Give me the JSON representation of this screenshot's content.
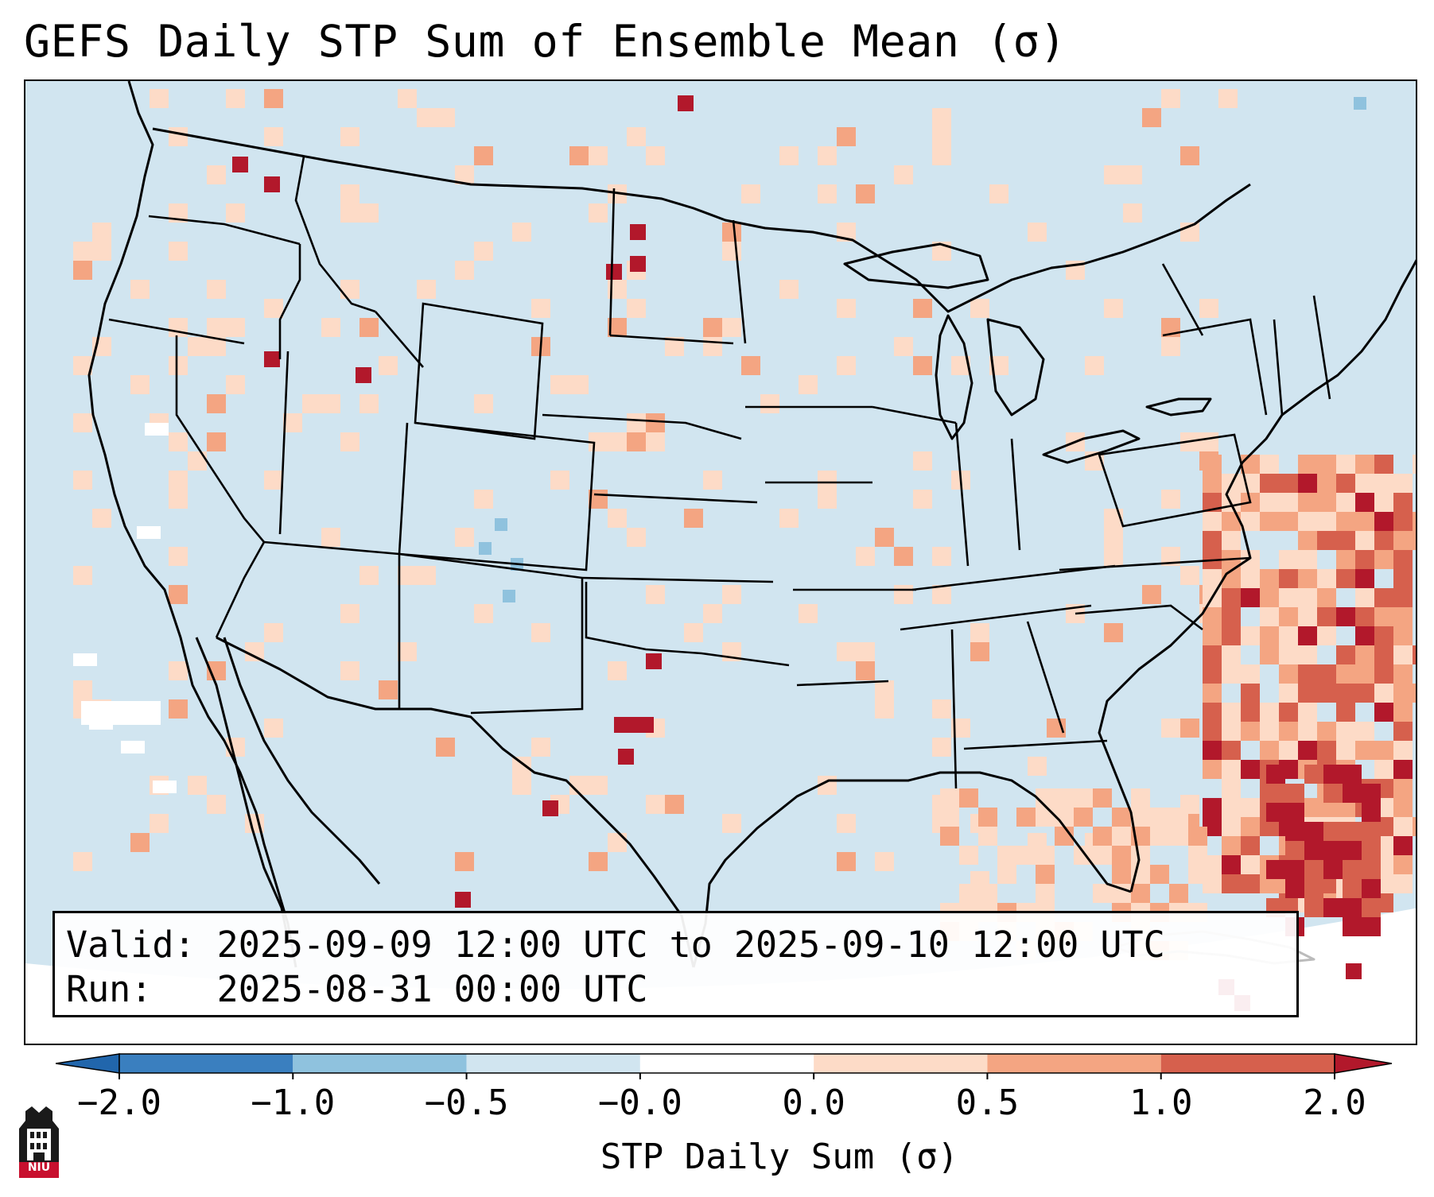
{
  "title": "GEFS Daily STP Sum of Ensemble Mean (σ)",
  "info": {
    "valid_line": "Valid: 2025-09-09 12:00 UTC to 2025-09-10 12:00 UTC",
    "run_line": "Run:   2025-08-31 00:00 UTC"
  },
  "colorbar": {
    "label": "STP Daily Sum (σ)",
    "ticks": [
      "−2.0",
      "−1.0",
      "−0.5",
      "−0.0",
      "0.0",
      "0.5",
      "1.0",
      "2.0"
    ],
    "colors": [
      "#3a7fbf",
      "#8fc2de",
      "#d1e5f0",
      "#ffffff",
      "#fddbc7",
      "#f4a582",
      "#d6604d",
      "#b2182b"
    ],
    "under_color": "#2166ac",
    "over_color": "#b2182b"
  },
  "map": {
    "background_color": "#d1e5f0",
    "outside_color": "#ffffff",
    "line_color": "#000000",
    "projection_note": "Lambert conformal over CONUS"
  },
  "logo": {
    "text": "NIU",
    "icon": "university-tower-icon",
    "color": "#c8102e"
  }
}
